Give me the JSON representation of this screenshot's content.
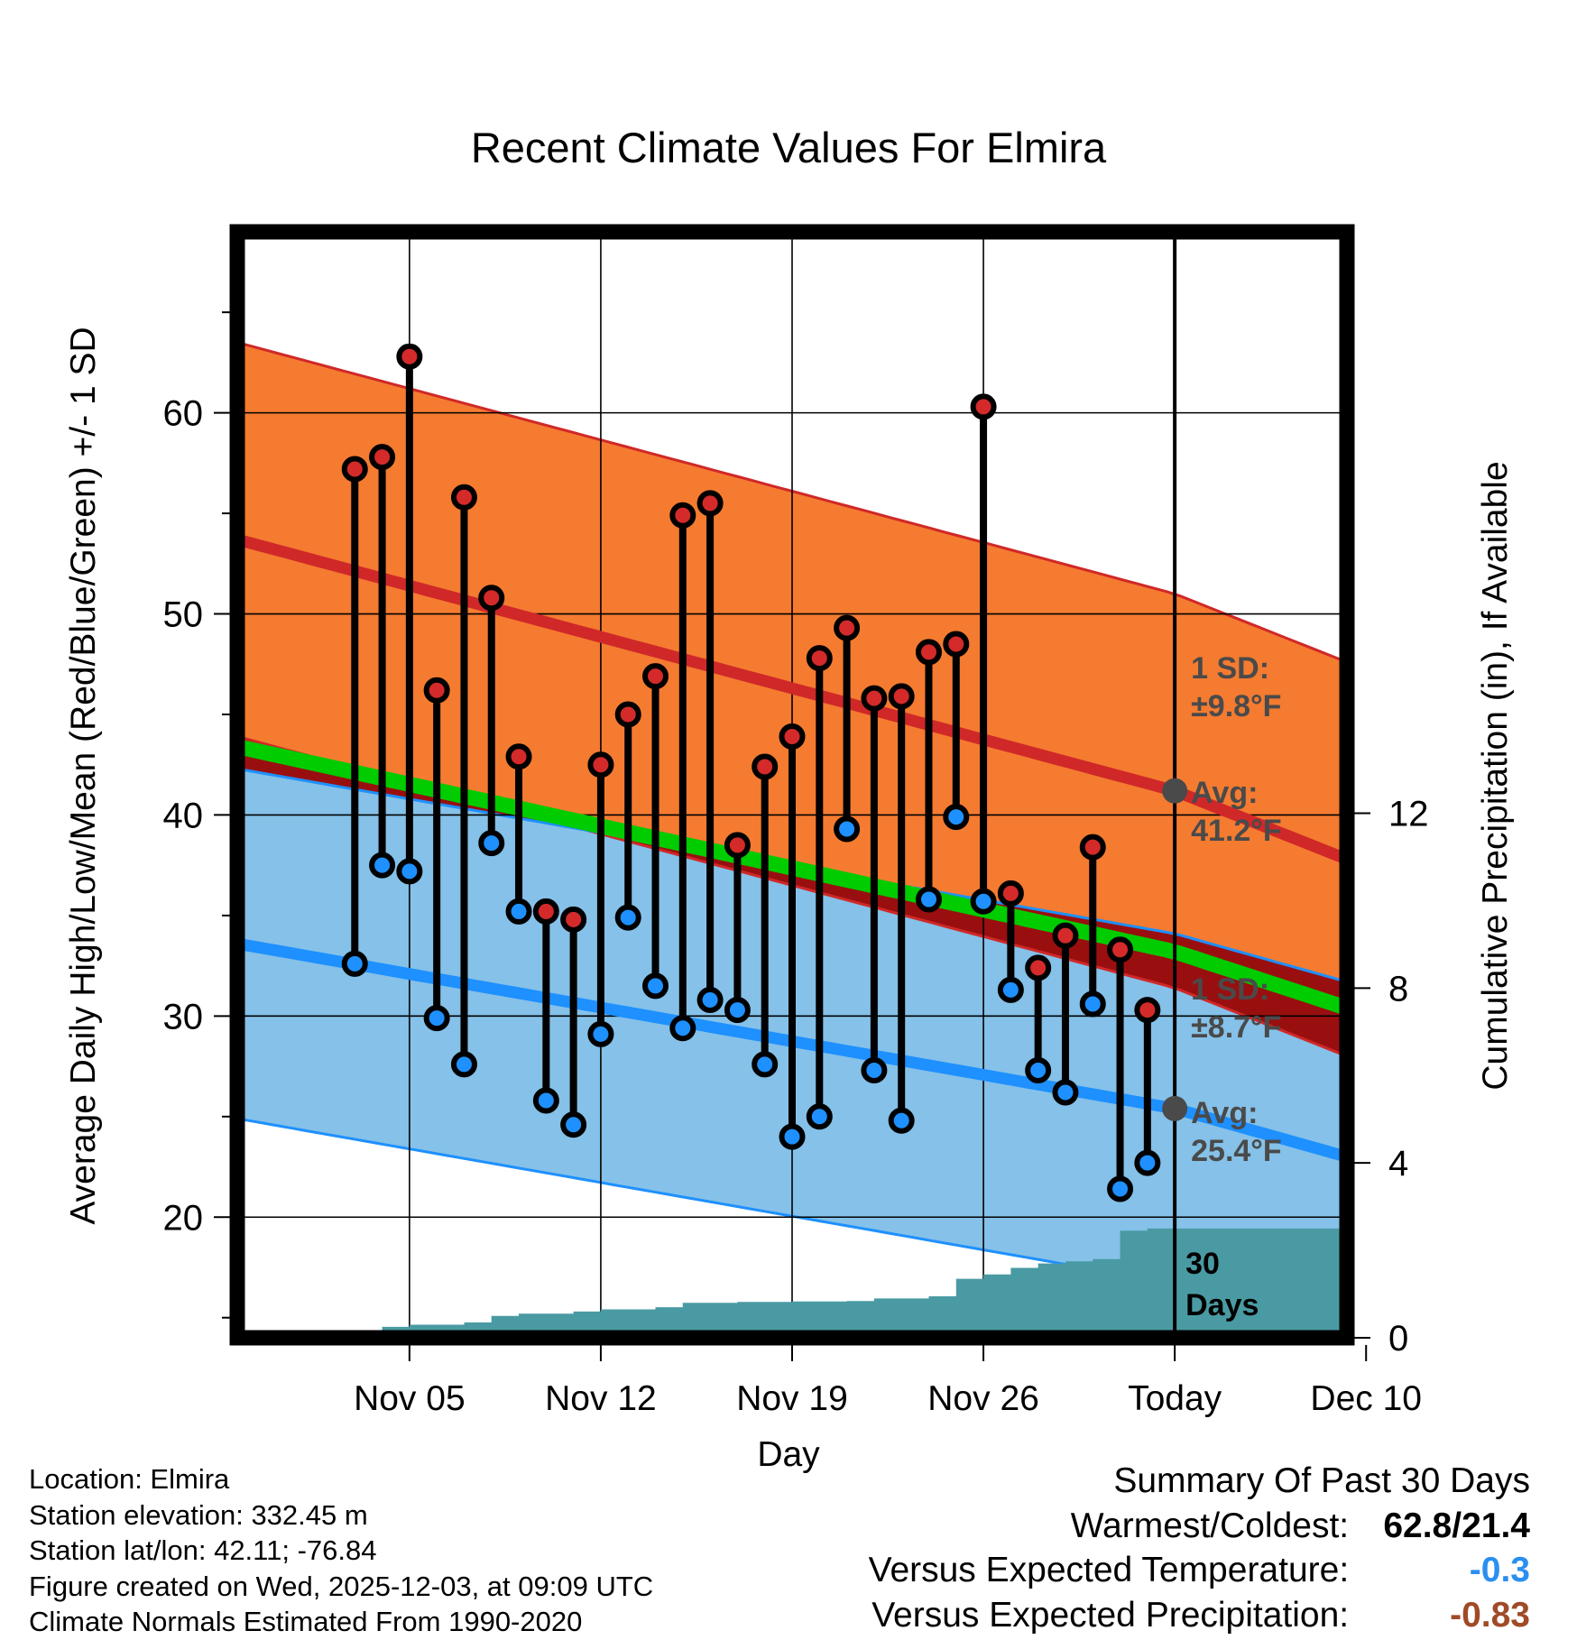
{
  "chart_data": {
    "type": "range-dots",
    "title": "Recent Climate Values For Elmira",
    "xlabel": "Day",
    "ylabel": "Average Daily High/Low/Mean (Red/Blue/Green) +/- 1 SD",
    "y2label": "Cumulative Precipitation (in), If Available",
    "ylim": [
      14,
      69
    ],
    "y2lim": [
      0,
      25.3
    ],
    "yticks": [
      20,
      30,
      40,
      50,
      60
    ],
    "y2ticks": [
      0,
      4,
      8,
      12
    ],
    "xlim_days": [
      -34.3,
      6.3
    ],
    "x_ticks": [
      {
        "day": -28,
        "label": "Nov 05"
      },
      {
        "day": -21,
        "label": "Nov 12"
      },
      {
        "day": -14,
        "label": "Nov 19"
      },
      {
        "day": -7,
        "label": "Nov 26"
      },
      {
        "day": 0,
        "label": "Today"
      },
      {
        "day": 7,
        "label": "Dec 10"
      }
    ],
    "normals": {
      "high_avg": [
        [
          -34.3,
          53.7
        ],
        [
          0,
          41.2
        ],
        [
          6.3,
          37.8
        ]
      ],
      "low_avg": [
        [
          -34.3,
          33.6
        ],
        [
          0,
          25.4
        ],
        [
          6.3,
          23.0
        ]
      ],
      "mean_avg": [
        [
          -34.3,
          43.4
        ],
        [
          0,
          33.2
        ],
        [
          6.3,
          30.4
        ]
      ],
      "high_sd": 9.8,
      "low_sd": 8.7
    },
    "observed": {
      "days": [
        -30,
        -29,
        -28,
        -27,
        -26,
        -25,
        -24,
        -23,
        -22,
        -21,
        -20,
        -19,
        -18,
        -17,
        -16,
        -15,
        -14,
        -13,
        -12,
        -11,
        -10,
        -9,
        -8,
        -7,
        -6,
        -5,
        -4,
        -3,
        -2,
        -1
      ],
      "highs": [
        57.2,
        57.8,
        62.8,
        46.2,
        55.8,
        50.8,
        42.9,
        35.2,
        34.8,
        42.5,
        45.0,
        46.9,
        54.9,
        55.5,
        38.5,
        42.4,
        43.9,
        47.8,
        49.3,
        45.8,
        45.9,
        48.1,
        48.5,
        60.3,
        36.1,
        32.4,
        34.0,
        38.4,
        33.3,
        30.3
      ],
      "lows": [
        32.6,
        37.5,
        37.2,
        29.9,
        27.6,
        38.6,
        35.2,
        25.8,
        24.6,
        29.1,
        34.9,
        31.5,
        29.4,
        30.8,
        30.3,
        27.6,
        24.0,
        25.0,
        39.3,
        27.3,
        24.8,
        35.8,
        39.9,
        35.7,
        31.3,
        27.3,
        26.2,
        30.6,
        21.4,
        22.7
      ]
    },
    "precip_cumulative": {
      "days": [
        -31,
        -29,
        -28,
        -26,
        -25,
        -24,
        -22,
        -21,
        -19,
        -18,
        -16,
        -14,
        -12,
        -11,
        -9,
        -8,
        -7,
        -6,
        -5,
        -4,
        -3,
        -2,
        -1
      ],
      "values": [
        0.0,
        0.25,
        0.3,
        0.35,
        0.5,
        0.55,
        0.6,
        0.65,
        0.7,
        0.8,
        0.82,
        0.83,
        0.84,
        0.9,
        0.95,
        1.35,
        1.45,
        1.6,
        1.7,
        1.75,
        1.8,
        2.45,
        2.5
      ]
    },
    "annotations": {
      "high_sd_label": "1 SD:",
      "high_sd_value": "±9.8°F",
      "high_avg_label": "Avg:",
      "high_avg_value": "41.2°F",
      "low_sd_label": "1 SD:",
      "low_sd_value": "±8.7°F",
      "low_avg_label": "Avg:",
      "low_avg_value": "25.4°F",
      "days_number": "30",
      "days_word": "Days"
    },
    "colors": {
      "high_band": "#f47b30",
      "high_line": "#d02828",
      "low_band": "#85c1e8",
      "low_line": "#1e90ff",
      "mean_line": "#00cc00",
      "overlap": "#990f0f",
      "precip": "#4a9aa3",
      "high_dot": "#d42a2a",
      "low_dot": "#1e90ff",
      "annotation": "#4a4a4a"
    }
  },
  "info": {
    "location": "Location: Elmira",
    "elevation": "Station elevation: 332.45 m",
    "latlon": "Station lat/lon: 42.11; -76.84",
    "created": "Figure created on Wed, 2025-12-03, at 09:09 UTC",
    "normals": "Climate Normals Estimated From 1990-2020"
  },
  "summary": {
    "title": "Summary Of Past 30 Days",
    "warm_label": "Warmest/Coldest:",
    "warm_value": "62.8/21.4",
    "temp_label": "Versus Expected Temperature:",
    "temp_value": "-0.3",
    "temp_color": "#2b8ff0",
    "precip_label": "Versus Expected Precipitation:",
    "precip_value": "-0.83",
    "precip_color": "#a04a28"
  }
}
